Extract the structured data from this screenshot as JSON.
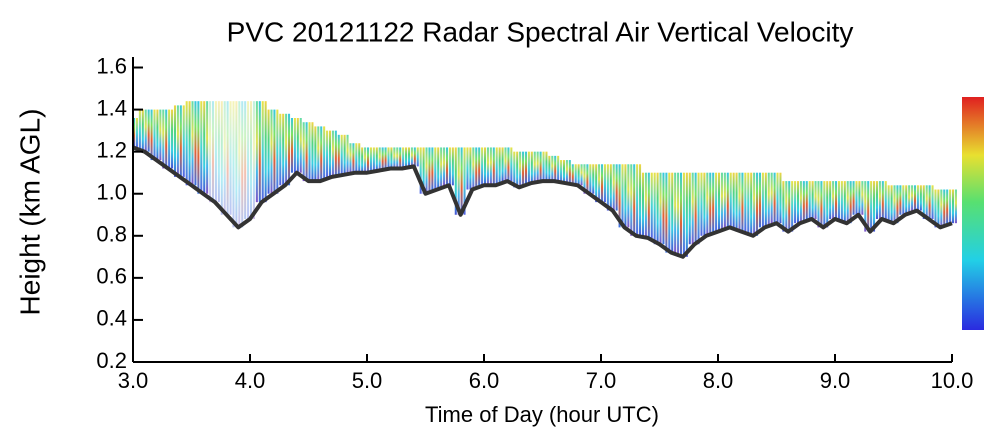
{
  "chart_data": {
    "type": "time-height",
    "title": "PVC 20121122 Radar Spectral Air Vertical Velocity",
    "xlabel": "Time of Day (hour UTC)",
    "ylabel": "Height (km AGL)",
    "x": [
      3.0,
      3.1,
      3.2,
      3.3,
      3.4,
      3.5,
      3.6,
      3.7,
      3.8,
      3.9,
      4.0,
      4.1,
      4.2,
      4.3,
      4.4,
      4.5,
      4.6,
      4.7,
      4.8,
      4.9,
      5.0,
      5.1,
      5.2,
      5.3,
      5.4,
      5.5,
      5.6,
      5.7,
      5.8,
      5.9,
      6.0,
      6.1,
      6.2,
      6.3,
      6.4,
      6.5,
      6.6,
      6.7,
      6.8,
      6.9,
      7.0,
      7.1,
      7.2,
      7.3,
      7.4,
      7.5,
      7.6,
      7.7,
      7.8,
      7.9,
      8.0,
      8.1,
      8.2,
      8.3,
      8.4,
      8.5,
      8.6,
      8.7,
      8.8,
      8.9,
      9.0,
      9.1,
      9.2,
      9.3,
      9.4,
      9.5,
      9.6,
      9.7,
      9.8,
      9.9,
      10.0
    ],
    "series": [
      {
        "color": "#1fa5e0",
        "values": [
          1.36,
          1.4,
          1.4,
          1.4,
          1.42,
          1.44,
          1.44,
          1.44,
          1.44,
          1.44,
          1.44,
          1.44,
          1.4,
          1.38,
          1.36,
          1.34,
          1.32,
          1.3,
          1.28,
          1.24,
          1.22,
          1.22,
          1.22,
          1.22,
          1.22,
          1.22,
          1.22,
          1.22,
          1.22,
          1.22,
          1.22,
          1.22,
          1.22,
          1.2,
          1.2,
          1.2,
          1.18,
          1.16,
          1.14,
          1.14,
          1.14,
          1.14,
          1.14,
          1.14,
          1.1,
          1.1,
          1.1,
          1.1,
          1.1,
          1.1,
          1.1,
          1.1,
          1.1,
          1.1,
          1.1,
          1.1,
          1.06,
          1.06,
          1.06,
          1.06,
          1.06,
          1.06,
          1.06,
          1.06,
          1.06,
          1.04,
          1.04,
          1.04,
          1.04,
          1.02,
          1.02
        ]
      },
      {
        "color": "#333333",
        "values": [
          1.22,
          1.2,
          1.16,
          1.12,
          1.08,
          1.04,
          1.0,
          0.96,
          0.9,
          0.84,
          0.88,
          0.96,
          1.0,
          1.04,
          1.1,
          1.06,
          1.06,
          1.08,
          1.09,
          1.1,
          1.1,
          1.11,
          1.12,
          1.12,
          1.13,
          1.0,
          1.02,
          1.04,
          0.9,
          1.02,
          1.04,
          1.04,
          1.06,
          1.03,
          1.05,
          1.06,
          1.06,
          1.05,
          1.04,
          1.0,
          0.96,
          0.92,
          0.84,
          0.8,
          0.79,
          0.76,
          0.72,
          0.7,
          0.76,
          0.8,
          0.82,
          0.84,
          0.82,
          0.8,
          0.84,
          0.86,
          0.82,
          0.86,
          0.88,
          0.84,
          0.88,
          0.86,
          0.9,
          0.82,
          0.88,
          0.86,
          0.9,
          0.92,
          0.88,
          0.84,
          0.86
        ]
      }
    ],
    "xlim": [
      3.0,
      10.0
    ],
    "ylim": [
      0.2,
      1.65
    ],
    "xticks": [
      {
        "value": 3,
        "label": "3.0"
      },
      {
        "value": 4,
        "label": "4.0"
      },
      {
        "value": 5,
        "label": "5.0"
      },
      {
        "value": 6,
        "label": "6.0"
      },
      {
        "value": 7,
        "label": "7.0"
      },
      {
        "value": 8,
        "label": "8.0"
      },
      {
        "value": 9,
        "label": "9.0"
      },
      {
        "value": 10,
        "label": "10.0"
      }
    ],
    "yticks": [
      0.2,
      0.4,
      0.6,
      0.8,
      {
        "value": 1,
        "label": "1.0"
      },
      1.2,
      1.4,
      1.6
    ]
  }
}
